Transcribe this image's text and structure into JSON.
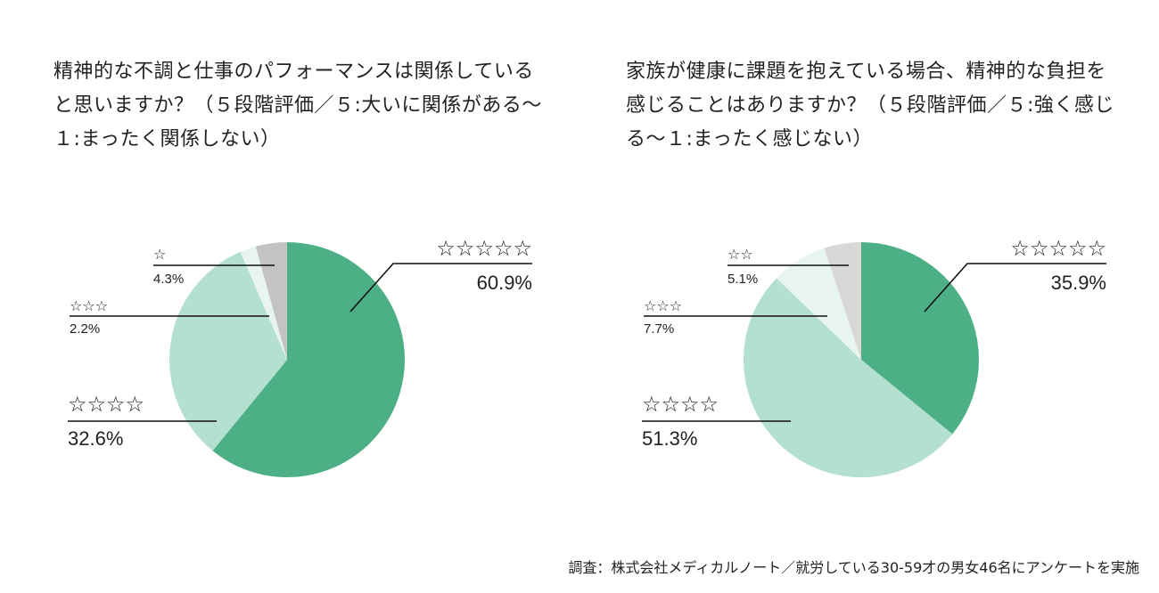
{
  "chart_data": [
    {
      "type": "pie",
      "title": "精神的な不調と仕事のパフォーマンスは関係していると思いますか？（５段階評価／５:大いに関係がある〜１:まったく関係しない）",
      "slices": [
        {
          "label": "☆☆☆☆☆",
          "value": 60.9,
          "display": "60.9%",
          "color": "#4daf86"
        },
        {
          "label": "☆☆☆☆",
          "value": 32.6,
          "display": "32.6%",
          "color": "#b3e0d0"
        },
        {
          "label": "☆☆☆",
          "value": 2.2,
          "display": "2.2%",
          "color": "#e8f4ef"
        },
        {
          "label": "☆",
          "value": 4.3,
          "display": "4.3%",
          "color": "#c3c3c3"
        }
      ]
    },
    {
      "type": "pie",
      "title": "家族が健康に課題を抱えている場合、精神的な負担を感じることはありますか？（５段階評価／５:強く感じる〜１:まったく感じない）",
      "slices": [
        {
          "label": "☆☆☆☆☆",
          "value": 35.9,
          "display": "35.9%",
          "color": "#4daf86"
        },
        {
          "label": "☆☆☆☆",
          "value": 51.3,
          "display": "51.3%",
          "color": "#b3e0d0"
        },
        {
          "label": "☆☆☆",
          "value": 7.7,
          "display": "7.7%",
          "color": "#e8f4ef"
        },
        {
          "label": "☆☆",
          "value": 5.1,
          "display": "5.1%",
          "color": "#d9d8d6"
        }
      ]
    }
  ],
  "footer": "調査：株式会社メディカルノート／就労している30-59才の男女46名にアンケートを実施"
}
